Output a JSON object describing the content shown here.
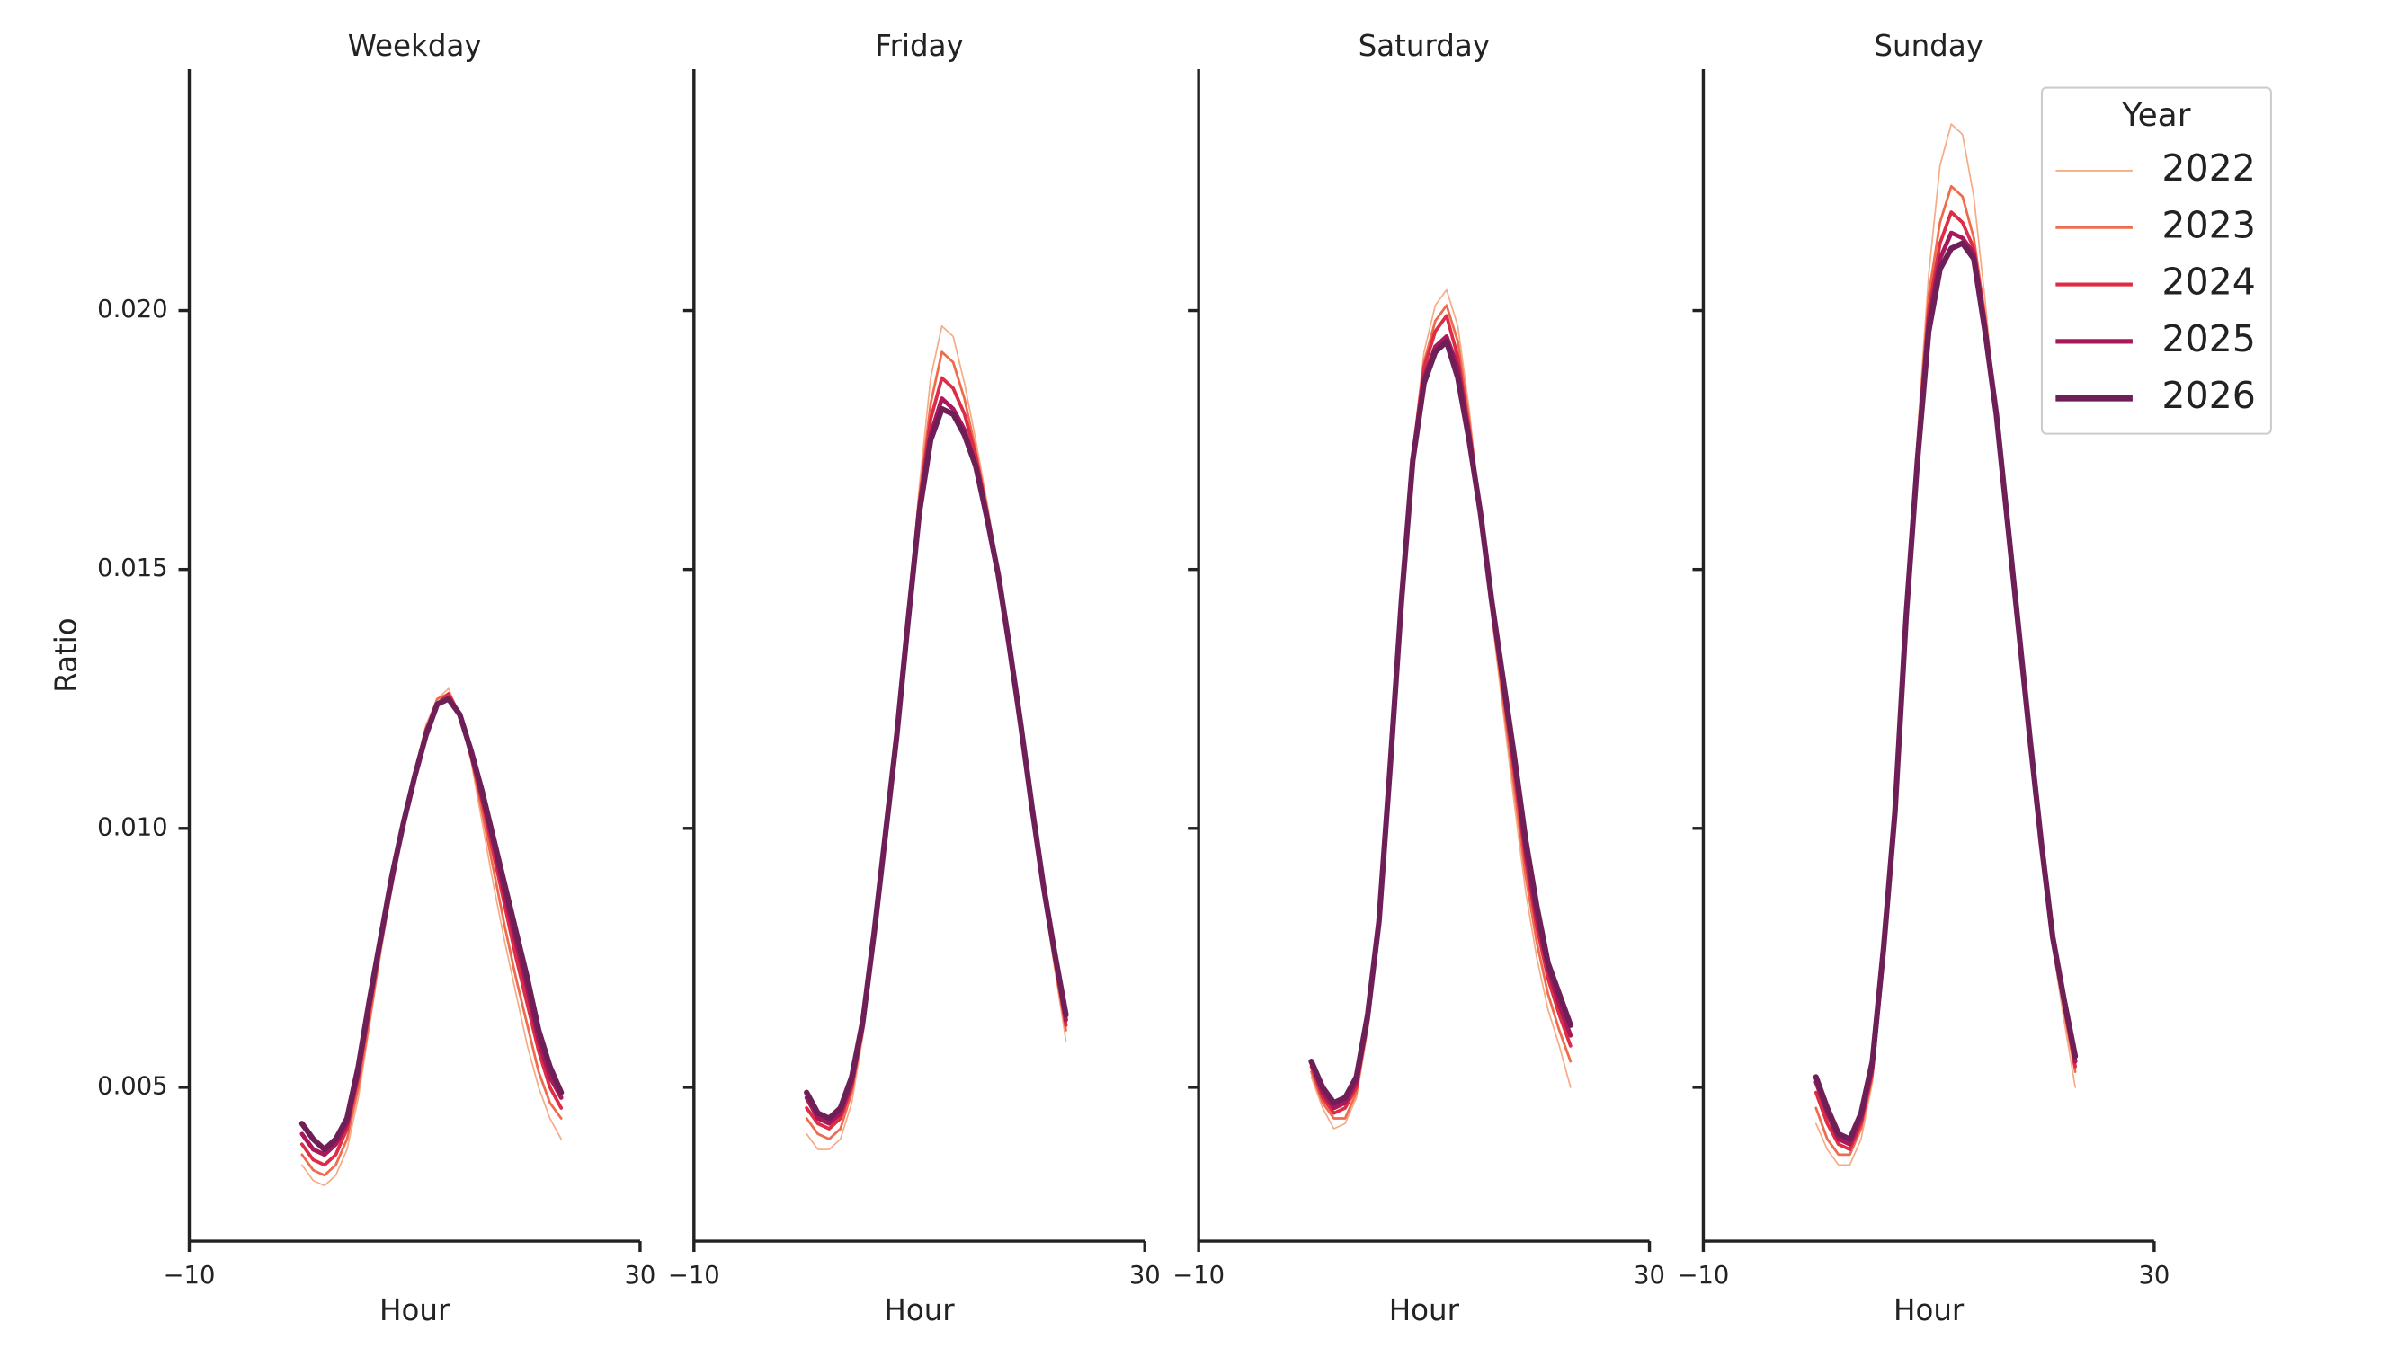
{
  "chart_data": [
    {
      "type": "line",
      "title": "Weekday",
      "xlabel": "Hour",
      "ylabel": "Ratio",
      "x": [
        0,
        1,
        2,
        3,
        4,
        5,
        6,
        7,
        8,
        9,
        10,
        11,
        12,
        13,
        14,
        15,
        16,
        17,
        18,
        19,
        20,
        21,
        22,
        23
      ],
      "xlim": [
        -10,
        30
      ],
      "xticks": [
        {
          "value": -10,
          "label": "−10"
        },
        30
      ],
      "ylim": [
        0.00203,
        0.02466
      ],
      "yticks": [
        0.005,
        {
          "value": 0.01,
          "label": "0.010"
        },
        0.015,
        {
          "value": 0.02,
          "label": "0.020"
        }
      ],
      "series": [
        {
          "color": "#f6ab87",
          "width": 1,
          "values": [
            0.0035,
            0.0032,
            0.0031,
            0.0033,
            0.0038,
            0.0048,
            0.0062,
            0.0076,
            0.0089,
            0.0101,
            0.0111,
            0.012,
            0.0125,
            0.0127,
            0.0122,
            0.0113,
            0.0101,
            0.0089,
            0.0078,
            0.0068,
            0.0058,
            0.005,
            0.0044,
            0.004
          ]
        },
        {
          "color": "#ef6b4d",
          "width": 1.6,
          "values": [
            0.0037,
            0.0034,
            0.0033,
            0.0035,
            0.004,
            0.005,
            0.0063,
            0.0077,
            0.0089,
            0.0101,
            0.0111,
            0.0119,
            0.0125,
            0.0126,
            0.0122,
            0.0114,
            0.0103,
            0.0092,
            0.0081,
            0.0071,
            0.0062,
            0.0053,
            0.0047,
            0.0044
          ]
        },
        {
          "color": "#dd2c45",
          "width": 2.2,
          "values": [
            0.0039,
            0.0036,
            0.0035,
            0.0037,
            0.0042,
            0.0052,
            0.0065,
            0.0078,
            0.009,
            0.0101,
            0.011,
            0.0119,
            0.0124,
            0.0126,
            0.0122,
            0.0114,
            0.0105,
            0.0095,
            0.0085,
            0.0075,
            0.0066,
            0.0057,
            0.005,
            0.0046
          ]
        },
        {
          "color": "#a9185a",
          "width": 2.8,
          "values": [
            0.0041,
            0.0038,
            0.0037,
            0.0039,
            0.0043,
            0.0053,
            0.0066,
            0.0079,
            0.009,
            0.0101,
            0.011,
            0.0118,
            0.0124,
            0.0125,
            0.0122,
            0.0115,
            0.0106,
            0.0097,
            0.0087,
            0.0078,
            0.0069,
            0.0059,
            0.0052,
            0.0048
          ]
        },
        {
          "color": "#6f1f57",
          "width": 3.6,
          "values": [
            0.0043,
            0.004,
            0.0038,
            0.004,
            0.0044,
            0.0054,
            0.0067,
            0.0079,
            0.0091,
            0.0101,
            0.011,
            0.0118,
            0.0124,
            0.0125,
            0.0122,
            0.0115,
            0.0107,
            0.0098,
            0.0089,
            0.008,
            0.0071,
            0.0061,
            0.0054,
            0.0049
          ]
        }
      ]
    },
    {
      "type": "line",
      "title": "Friday",
      "xlabel": "Hour",
      "x": [
        0,
        1,
        2,
        3,
        4,
        5,
        6,
        7,
        8,
        9,
        10,
        11,
        12,
        13,
        14,
        15,
        16,
        17,
        18,
        19,
        20,
        21,
        22,
        23
      ],
      "xlim": [
        -10,
        30
      ],
      "xticks": [
        {
          "value": -10,
          "label": "−10"
        },
        30
      ],
      "ylim": [
        0.00203,
        0.02466
      ],
      "yticks": [
        0.005,
        0.01,
        0.015,
        0.02
      ],
      "series": [
        {
          "color": "#f6ab87",
          "width": 1,
          "values": [
            0.0041,
            0.0038,
            0.0038,
            0.004,
            0.0047,
            0.006,
            0.0079,
            0.0099,
            0.0119,
            0.0142,
            0.0166,
            0.0187,
            0.0197,
            0.0195,
            0.0186,
            0.0175,
            0.0163,
            0.015,
            0.0135,
            0.0119,
            0.0103,
            0.0087,
            0.0073,
            0.0059
          ]
        },
        {
          "color": "#ef6b4d",
          "width": 1.6,
          "values": [
            0.0044,
            0.0041,
            0.004,
            0.0042,
            0.0049,
            0.0061,
            0.0079,
            0.0099,
            0.0119,
            0.0141,
            0.0164,
            0.0182,
            0.0192,
            0.019,
            0.0183,
            0.0173,
            0.0162,
            0.0149,
            0.0135,
            0.0119,
            0.0103,
            0.0088,
            0.0074,
            0.0061
          ]
        },
        {
          "color": "#dd2c45",
          "width": 2.2,
          "values": [
            0.0046,
            0.0043,
            0.0042,
            0.0044,
            0.005,
            0.0062,
            0.008,
            0.0099,
            0.0118,
            0.0141,
            0.0163,
            0.0179,
            0.0187,
            0.0185,
            0.018,
            0.0172,
            0.0161,
            0.0149,
            0.0135,
            0.0119,
            0.0104,
            0.0088,
            0.0075,
            0.0062
          ]
        },
        {
          "color": "#a9185a",
          "width": 2.8,
          "values": [
            0.0048,
            0.0044,
            0.0043,
            0.0045,
            0.0051,
            0.0062,
            0.008,
            0.0099,
            0.0118,
            0.014,
            0.0162,
            0.0176,
            0.0183,
            0.0181,
            0.0177,
            0.017,
            0.016,
            0.0149,
            0.0135,
            0.012,
            0.0104,
            0.0089,
            0.0076,
            0.0063
          ]
        },
        {
          "color": "#6f1f57",
          "width": 3.6,
          "values": [
            0.0049,
            0.0045,
            0.0044,
            0.0046,
            0.0052,
            0.0063,
            0.008,
            0.0099,
            0.0118,
            0.014,
            0.0161,
            0.0175,
            0.0181,
            0.018,
            0.0176,
            0.017,
            0.016,
            0.0149,
            0.0135,
            0.012,
            0.0104,
            0.0089,
            0.0076,
            0.0064
          ]
        }
      ]
    },
    {
      "type": "line",
      "title": "Saturday",
      "xlabel": "Hour",
      "x": [
        0,
        1,
        2,
        3,
        4,
        5,
        6,
        7,
        8,
        9,
        10,
        11,
        12,
        13,
        14,
        15,
        16,
        17,
        18,
        19,
        20,
        21,
        22,
        23
      ],
      "xlim": [
        -10,
        30
      ],
      "xticks": [
        {
          "value": -10,
          "label": "−10"
        },
        30
      ],
      "ylim": [
        0.00203,
        0.02466
      ],
      "yticks": [
        0.005,
        0.01,
        0.015,
        0.02
      ],
      "series": [
        {
          "color": "#f6ab87",
          "width": 1,
          "values": [
            0.0052,
            0.0046,
            0.0042,
            0.0043,
            0.0048,
            0.0061,
            0.008,
            0.0111,
            0.0144,
            0.0173,
            0.0192,
            0.0201,
            0.0204,
            0.0197,
            0.0181,
            0.0161,
            0.0141,
            0.0123,
            0.0105,
            0.0088,
            0.0075,
            0.0065,
            0.0058,
            0.005
          ]
        },
        {
          "color": "#ef6b4d",
          "width": 1.6,
          "values": [
            0.0053,
            0.0047,
            0.0044,
            0.0044,
            0.0049,
            0.0062,
            0.0081,
            0.0111,
            0.0144,
            0.0172,
            0.019,
            0.0198,
            0.0201,
            0.0194,
            0.0179,
            0.0161,
            0.0142,
            0.0125,
            0.0108,
            0.0091,
            0.0078,
            0.0068,
            0.0061,
            0.0055
          ]
        },
        {
          "color": "#dd2c45",
          "width": 2.2,
          "values": [
            0.0054,
            0.0048,
            0.0045,
            0.0046,
            0.005,
            0.0063,
            0.0081,
            0.0112,
            0.0144,
            0.0172,
            0.0189,
            0.0196,
            0.0199,
            0.0191,
            0.0177,
            0.0161,
            0.0143,
            0.0127,
            0.0111,
            0.0094,
            0.0081,
            0.0071,
            0.0064,
            0.0058
          ]
        },
        {
          "color": "#a9185a",
          "width": 2.8,
          "values": [
            0.0055,
            0.0049,
            0.0046,
            0.0047,
            0.0051,
            0.0063,
            0.0082,
            0.0112,
            0.0144,
            0.0171,
            0.0187,
            0.0193,
            0.0195,
            0.0189,
            0.0176,
            0.0161,
            0.0144,
            0.0128,
            0.0113,
            0.0096,
            0.0083,
            0.0073,
            0.0066,
            0.006
          ]
        },
        {
          "color": "#6f1f57",
          "width": 3.6,
          "values": [
            0.0055,
            0.005,
            0.0047,
            0.0048,
            0.0052,
            0.0064,
            0.0082,
            0.0112,
            0.0144,
            0.0171,
            0.0186,
            0.0192,
            0.0194,
            0.0187,
            0.0175,
            0.0161,
            0.0144,
            0.0129,
            0.0114,
            0.0098,
            0.0085,
            0.0074,
            0.0068,
            0.0062
          ]
        }
      ]
    },
    {
      "type": "line",
      "title": "Sunday",
      "xlabel": "Hour",
      "x": [
        0,
        1,
        2,
        3,
        4,
        5,
        6,
        7,
        8,
        9,
        10,
        11,
        12,
        13,
        14,
        15,
        16,
        17,
        18,
        19,
        20,
        21,
        22,
        23
      ],
      "xlim": [
        -10,
        30
      ],
      "xticks": [
        {
          "value": -10,
          "label": "−10"
        },
        30
      ],
      "ylim": [
        0.00203,
        0.02466
      ],
      "yticks": [
        0.005,
        0.01,
        0.015,
        0.02
      ],
      "legend": "upper right",
      "legend_title": "Year",
      "series": [
        {
          "name": "2022",
          "color": "#f6ab87",
          "width": 1,
          "values": [
            0.0043,
            0.0038,
            0.0035,
            0.0035,
            0.004,
            0.0051,
            0.0074,
            0.0102,
            0.0142,
            0.0176,
            0.0207,
            0.0228,
            0.0236,
            0.0234,
            0.0222,
            0.0202,
            0.018,
            0.0157,
            0.0135,
            0.0114,
            0.0094,
            0.0077,
            0.0063,
            0.005
          ]
        },
        {
          "name": "2023",
          "color": "#ef6b4d",
          "width": 1.6,
          "values": [
            0.0046,
            0.004,
            0.0037,
            0.0037,
            0.0042,
            0.0052,
            0.0075,
            0.0102,
            0.0142,
            0.0174,
            0.0203,
            0.0217,
            0.0224,
            0.0222,
            0.0214,
            0.0199,
            0.018,
            0.0158,
            0.0136,
            0.0115,
            0.0095,
            0.0078,
            0.0065,
            0.0053
          ]
        },
        {
          "name": "2024",
          "color": "#dd2c45",
          "width": 2.2,
          "values": [
            0.0049,
            0.0043,
            0.0039,
            0.0038,
            0.0043,
            0.0053,
            0.0076,
            0.0103,
            0.0141,
            0.0173,
            0.02,
            0.0213,
            0.0219,
            0.0217,
            0.0212,
            0.0198,
            0.018,
            0.0158,
            0.0137,
            0.0116,
            0.0096,
            0.0079,
            0.0066,
            0.0054
          ]
        },
        {
          "name": "2025",
          "color": "#a9185a",
          "width": 2.8,
          "values": [
            0.0051,
            0.0045,
            0.004,
            0.0039,
            0.0044,
            0.0054,
            0.0076,
            0.0103,
            0.0141,
            0.0172,
            0.0198,
            0.021,
            0.0215,
            0.0214,
            0.0211,
            0.0197,
            0.018,
            0.0159,
            0.0138,
            0.0117,
            0.0097,
            0.0079,
            0.0067,
            0.0055
          ]
        },
        {
          "name": "2026",
          "color": "#6f1f57",
          "width": 3.6,
          "values": [
            0.0052,
            0.0046,
            0.0041,
            0.004,
            0.0045,
            0.0055,
            0.0077,
            0.0103,
            0.0141,
            0.0171,
            0.0196,
            0.0208,
            0.0212,
            0.0213,
            0.021,
            0.0196,
            0.018,
            0.0159,
            0.0138,
            0.0117,
            0.0097,
            0.0079,
            0.0067,
            0.0056
          ]
        }
      ]
    }
  ]
}
